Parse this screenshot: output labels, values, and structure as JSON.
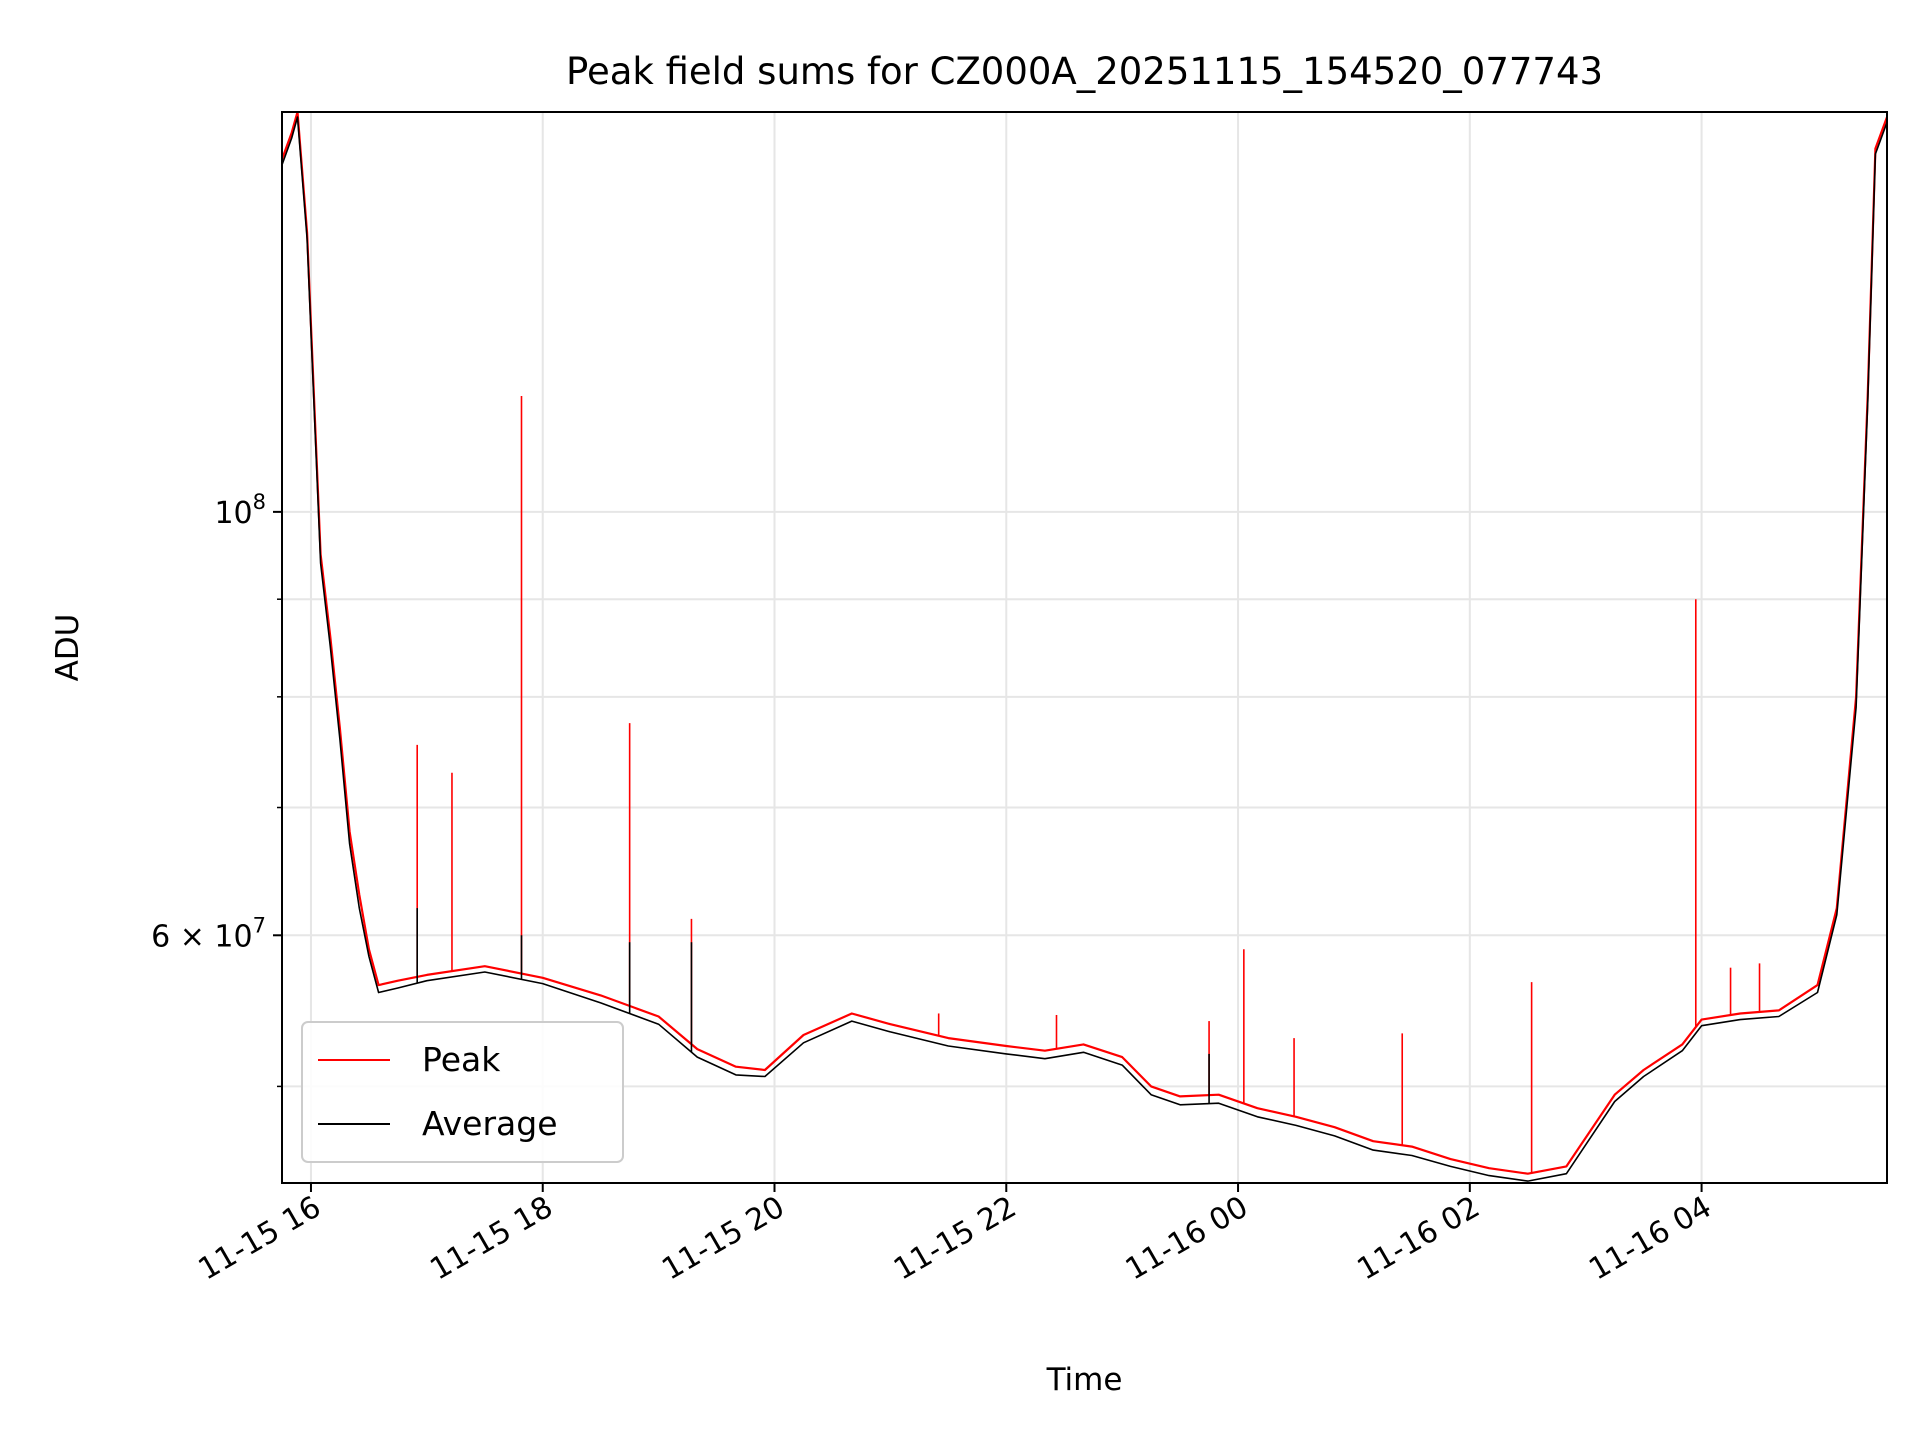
{
  "chart_data": {
    "type": "line",
    "title": "Peak field sums for CZ000A_20251115_154520_077743",
    "xlabel": "Time",
    "ylabel": "ADU",
    "x_scale": "time",
    "y_scale": "log",
    "xlim": [
      "2025-11-15T15:45",
      "2025-11-16T05:36"
    ],
    "ylim": [
      44500000,
      162000000
    ],
    "x_ticks": [
      {
        "t": "2025-11-15T16:00",
        "label": "11-15 16"
      },
      {
        "t": "2025-11-15T18:00",
        "label": "11-15 18"
      },
      {
        "t": "2025-11-15T20:00",
        "label": "11-15 20"
      },
      {
        "t": "2025-11-15T22:00",
        "label": "11-15 22"
      },
      {
        "t": "2025-11-16T00:00",
        "label": "11-16 00"
      },
      {
        "t": "2025-11-16T02:00",
        "label": "11-16 02"
      },
      {
        "t": "2025-11-16T04:00",
        "label": "11-16 04"
      }
    ],
    "y_major_ticks": [
      {
        "v": 60000000,
        "base": "6 × 10",
        "exp": "7"
      },
      {
        "v": 100000000,
        "base": "10",
        "exp": "8"
      }
    ],
    "y_minor_ticks": [
      50000000,
      70000000,
      80000000,
      90000000
    ],
    "grid": true,
    "legend_position": "lower-left",
    "series": [
      {
        "name": "Peak",
        "color": "#ff0000",
        "points": [
          [
            "2025-11-15T15:45",
            153000000
          ],
          [
            "2025-11-15T15:50",
            158000000
          ],
          [
            "2025-11-15T15:53",
            162000000
          ],
          [
            "2025-11-15T15:58",
            140000000
          ],
          [
            "2025-11-15T16:05",
            95000000
          ],
          [
            "2025-11-15T16:10",
            86000000
          ],
          [
            "2025-11-15T16:15",
            77000000
          ],
          [
            "2025-11-15T16:20",
            68000000
          ],
          [
            "2025-11-15T16:25",
            63000000
          ],
          [
            "2025-11-15T16:30",
            59000000
          ],
          [
            "2025-11-15T16:35",
            56500000
          ],
          [
            "2025-11-15T16:45",
            56800000
          ],
          [
            "2025-11-15T17:00",
            57200000
          ],
          [
            "2025-11-15T17:30",
            57800000
          ],
          [
            "2025-11-15T18:00",
            57000000
          ],
          [
            "2025-11-15T18:30",
            55800000
          ],
          [
            "2025-11-15T19:00",
            54400000
          ],
          [
            "2025-11-15T19:20",
            52300000
          ],
          [
            "2025-11-15T19:40",
            51200000
          ],
          [
            "2025-11-15T19:55",
            51000000
          ],
          [
            "2025-11-15T20:15",
            53200000
          ],
          [
            "2025-11-15T20:40",
            54600000
          ],
          [
            "2025-11-15T21:00",
            53900000
          ],
          [
            "2025-11-15T21:30",
            53000000
          ],
          [
            "2025-11-15T22:00",
            52500000
          ],
          [
            "2025-11-15T22:20",
            52200000
          ],
          [
            "2025-11-15T22:40",
            52600000
          ],
          [
            "2025-11-15T23:00",
            51800000
          ],
          [
            "2025-11-15T23:15",
            50000000
          ],
          [
            "2025-11-15T23:30",
            49400000
          ],
          [
            "2025-11-15T23:50",
            49500000
          ],
          [
            "2025-11-16T00:10",
            48700000
          ],
          [
            "2025-11-16T00:30",
            48200000
          ],
          [
            "2025-11-16T00:50",
            47600000
          ],
          [
            "2025-11-16T01:10",
            46800000
          ],
          [
            "2025-11-16T01:30",
            46500000
          ],
          [
            "2025-11-16T01:50",
            45800000
          ],
          [
            "2025-11-16T02:10",
            45300000
          ],
          [
            "2025-11-16T02:30",
            45000000
          ],
          [
            "2025-11-16T02:50",
            45400000
          ],
          [
            "2025-11-16T03:00",
            47000000
          ],
          [
            "2025-11-16T03:15",
            49500000
          ],
          [
            "2025-11-16T03:30",
            51000000
          ],
          [
            "2025-11-16T03:50",
            52600000
          ],
          [
            "2025-11-16T04:00",
            54200000
          ],
          [
            "2025-11-16T04:20",
            54600000
          ],
          [
            "2025-11-16T04:40",
            54800000
          ],
          [
            "2025-11-16T05:00",
            56500000
          ],
          [
            "2025-11-16T05:10",
            62000000
          ],
          [
            "2025-11-16T05:20",
            80000000
          ],
          [
            "2025-11-16T05:26",
            115000000
          ],
          [
            "2025-11-16T05:30",
            155000000
          ],
          [
            "2025-11-16T05:36",
            161000000
          ]
        ],
        "spikes": [
          [
            "2025-11-15T16:55",
            75500000
          ],
          [
            "2025-11-15T17:13",
            73000000
          ],
          [
            "2025-11-15T17:49",
            115000000
          ],
          [
            "2025-11-15T18:45",
            77500000
          ],
          [
            "2025-11-15T19:17",
            61200000
          ],
          [
            "2025-11-15T21:25",
            54600000
          ],
          [
            "2025-11-15T22:26",
            54500000
          ],
          [
            "2025-11-15T23:45",
            54100000
          ],
          [
            "2025-11-16T00:03",
            59000000
          ],
          [
            "2025-11-16T00:29",
            53000000
          ],
          [
            "2025-11-16T01:25",
            53300000
          ],
          [
            "2025-11-16T02:32",
            56700000
          ],
          [
            "2025-11-16T03:57",
            90000000
          ],
          [
            "2025-11-16T04:15",
            57700000
          ],
          [
            "2025-11-16T04:30",
            58000000
          ]
        ]
      },
      {
        "name": "Average",
        "color": "#000000",
        "points": [
          [
            "2025-11-15T15:45",
            152000000
          ],
          [
            "2025-11-15T15:50",
            157000000
          ],
          [
            "2025-11-15T15:53",
            161000000
          ],
          [
            "2025-11-15T15:58",
            139000000
          ],
          [
            "2025-11-15T16:05",
            94000000
          ],
          [
            "2025-11-15T16:10",
            85000000
          ],
          [
            "2025-11-15T16:15",
            76000000
          ],
          [
            "2025-11-15T16:20",
            67000000
          ],
          [
            "2025-11-15T16:25",
            62000000
          ],
          [
            "2025-11-15T16:30",
            58500000
          ],
          [
            "2025-11-15T16:35",
            56000000
          ],
          [
            "2025-11-15T16:45",
            56300000
          ],
          [
            "2025-11-15T17:00",
            56800000
          ],
          [
            "2025-11-15T17:30",
            57400000
          ],
          [
            "2025-11-15T18:00",
            56600000
          ],
          [
            "2025-11-15T18:30",
            55300000
          ],
          [
            "2025-11-15T19:00",
            53900000
          ],
          [
            "2025-11-15T19:20",
            51800000
          ],
          [
            "2025-11-15T19:40",
            50700000
          ],
          [
            "2025-11-15T19:55",
            50600000
          ],
          [
            "2025-11-15T20:15",
            52700000
          ],
          [
            "2025-11-15T20:40",
            54100000
          ],
          [
            "2025-11-15T21:00",
            53400000
          ],
          [
            "2025-11-15T21:30",
            52500000
          ],
          [
            "2025-11-15T22:00",
            52000000
          ],
          [
            "2025-11-15T22:20",
            51700000
          ],
          [
            "2025-11-15T22:40",
            52100000
          ],
          [
            "2025-11-15T23:00",
            51300000
          ],
          [
            "2025-11-15T23:15",
            49500000
          ],
          [
            "2025-11-15T23:30",
            48900000
          ],
          [
            "2025-11-15T23:50",
            49000000
          ],
          [
            "2025-11-16T00:10",
            48200000
          ],
          [
            "2025-11-16T00:30",
            47700000
          ],
          [
            "2025-11-16T00:50",
            47100000
          ],
          [
            "2025-11-16T01:10",
            46300000
          ],
          [
            "2025-11-16T01:30",
            46000000
          ],
          [
            "2025-11-16T01:50",
            45400000
          ],
          [
            "2025-11-16T02:10",
            44900000
          ],
          [
            "2025-11-16T02:30",
            44600000
          ],
          [
            "2025-11-16T02:50",
            45000000
          ],
          [
            "2025-11-16T03:00",
            46600000
          ],
          [
            "2025-11-16T03:15",
            49100000
          ],
          [
            "2025-11-16T03:30",
            50600000
          ],
          [
            "2025-11-16T03:50",
            52200000
          ],
          [
            "2025-11-16T04:00",
            53800000
          ],
          [
            "2025-11-16T04:20",
            54200000
          ],
          [
            "2025-11-16T04:40",
            54400000
          ],
          [
            "2025-11-16T05:00",
            56000000
          ],
          [
            "2025-11-16T05:10",
            61500000
          ],
          [
            "2025-11-16T05:20",
            79000000
          ],
          [
            "2025-11-16T05:26",
            114000000
          ],
          [
            "2025-11-16T05:30",
            154000000
          ],
          [
            "2025-11-16T05:36",
            160000000
          ]
        ],
        "spikes": [
          [
            "2025-11-15T16:55",
            62000000
          ],
          [
            "2025-11-15T17:49",
            60000000
          ],
          [
            "2025-11-15T18:45",
            59500000
          ],
          [
            "2025-11-15T19:17",
            59500000
          ],
          [
            "2025-11-15T23:45",
            52000000
          ]
        ]
      }
    ]
  }
}
